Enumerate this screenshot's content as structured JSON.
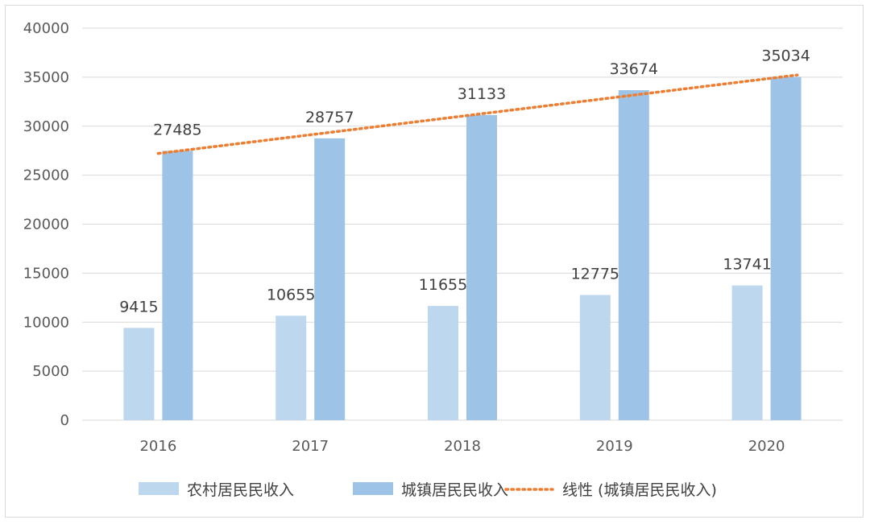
{
  "chart_data": {
    "type": "bar",
    "categories": [
      "2016",
      "2017",
      "2018",
      "2019",
      "2020"
    ],
    "series": [
      {
        "name": "农村居民民收入",
        "values": [
          9415,
          10655,
          11655,
          12775,
          13741
        ],
        "color": "#bdd7ee"
      },
      {
        "name": "城镇居民民收入",
        "values": [
          27485,
          28757,
          31133,
          33674,
          35034
        ],
        "color": "#9dc3e6"
      }
    ],
    "trendline": {
      "name": "线性 (城镇居民民收入)",
      "series": "城镇居民民收入",
      "type": "linear",
      "color": "#ed7d31"
    },
    "ylim": [
      0,
      40000
    ],
    "yticks": [
      "0",
      "5000",
      "10000",
      "15000",
      "20000",
      "25000",
      "30000",
      "35000",
      "40000"
    ],
    "grid": true,
    "legend_position": "bottom"
  }
}
